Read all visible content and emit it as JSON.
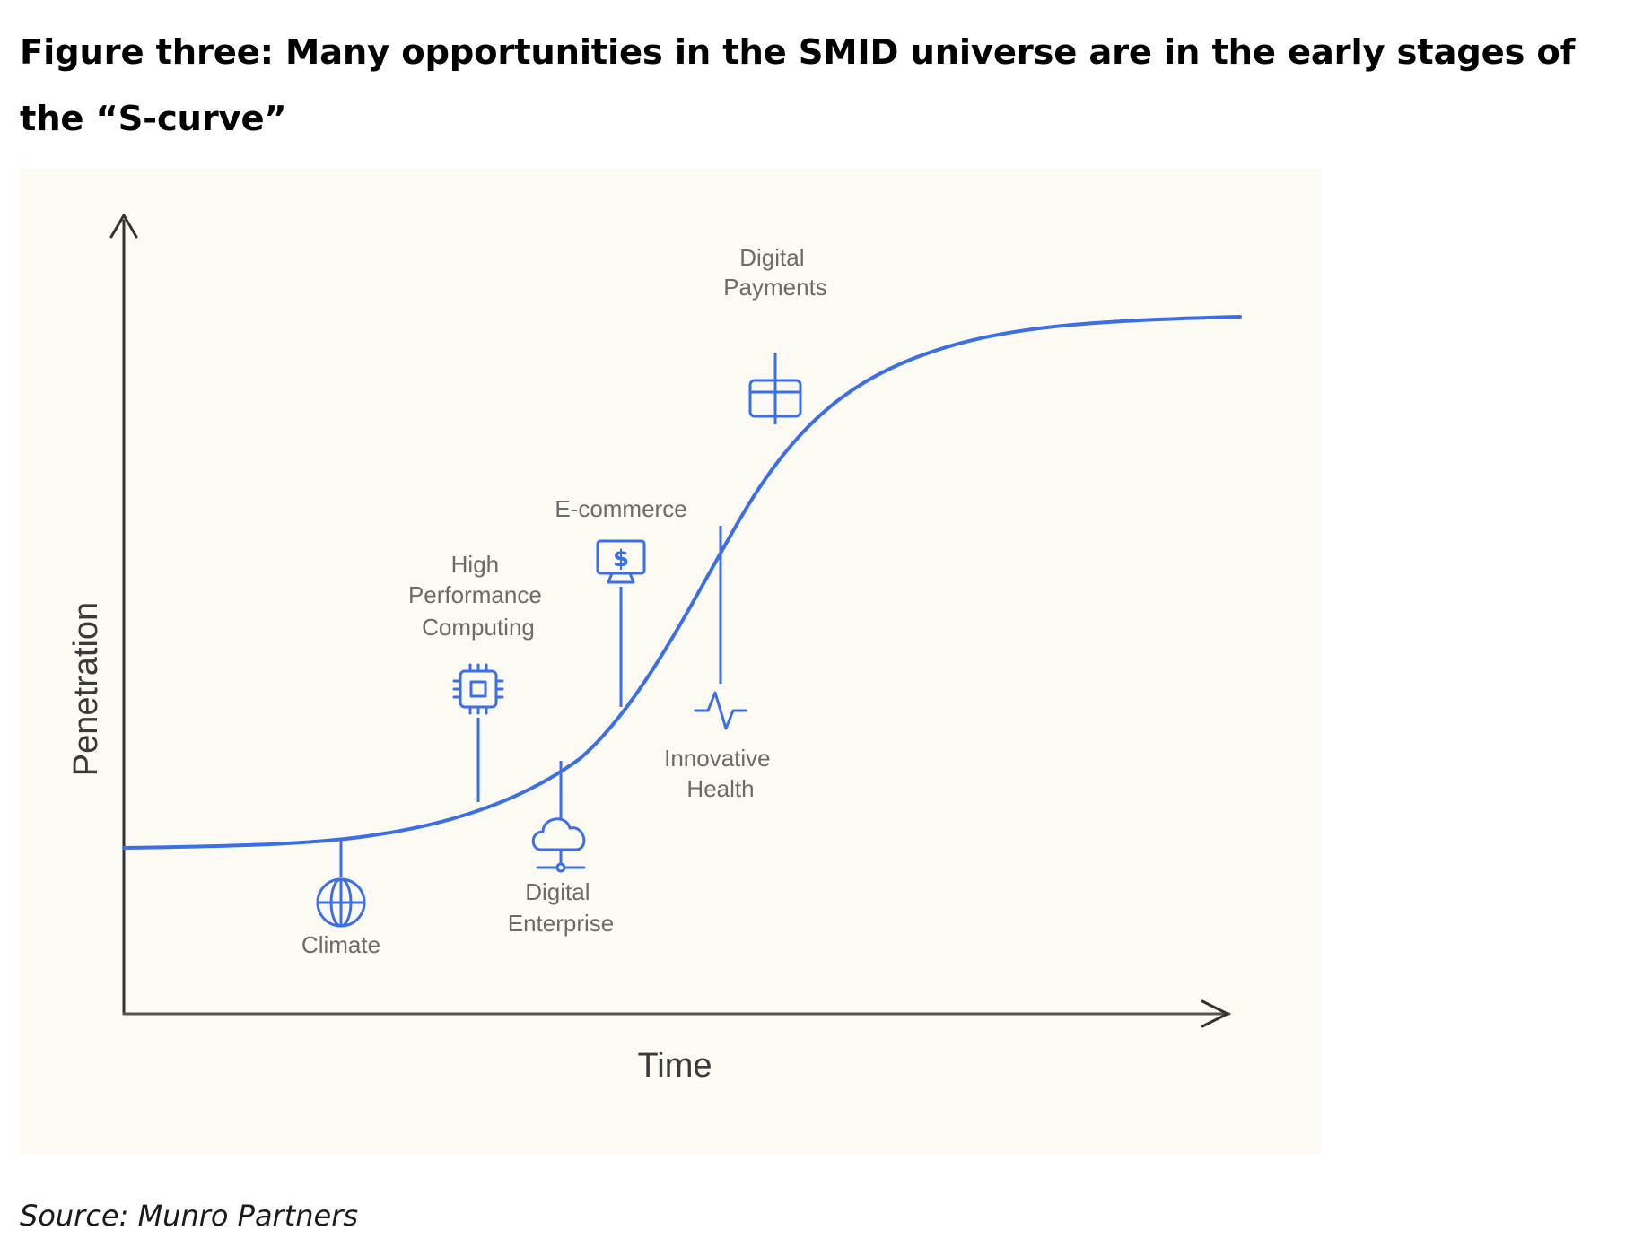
{
  "figure": {
    "title": "Figure three: Many opportunities in the SMID universe are in the early stages of the “S-curve”",
    "source": "Source: Munro Partners"
  },
  "diagram": {
    "type": "s-curve",
    "x_axis_label": "Time",
    "y_axis_label": "Penetration",
    "curve_color": "#3b6fe8",
    "axis_color": "#333333",
    "markers": [
      {
        "id": "climate",
        "label_lines": [
          "Climate"
        ],
        "icon": "globe-icon",
        "position": "below-curve"
      },
      {
        "id": "hpc",
        "label_lines": [
          "High",
          "Performance",
          "Computing"
        ],
        "icon": "chip-icon",
        "position": "above-curve"
      },
      {
        "id": "digital-enterprise",
        "label_lines": [
          "Digital",
          "Enterprise"
        ],
        "icon": "cloud-network-icon",
        "position": "below-curve"
      },
      {
        "id": "ecommerce",
        "label_lines": [
          "E-commerce"
        ],
        "icon": "monitor-dollar-icon",
        "position": "above-curve"
      },
      {
        "id": "innovative-health",
        "label_lines": [
          "Innovative",
          "Health"
        ],
        "icon": "pulse-icon",
        "position": "below-curve"
      },
      {
        "id": "digital-payments",
        "label_lines": [
          "Digital",
          "Payments"
        ],
        "icon": "card-icon",
        "position": "above-curve"
      }
    ]
  }
}
